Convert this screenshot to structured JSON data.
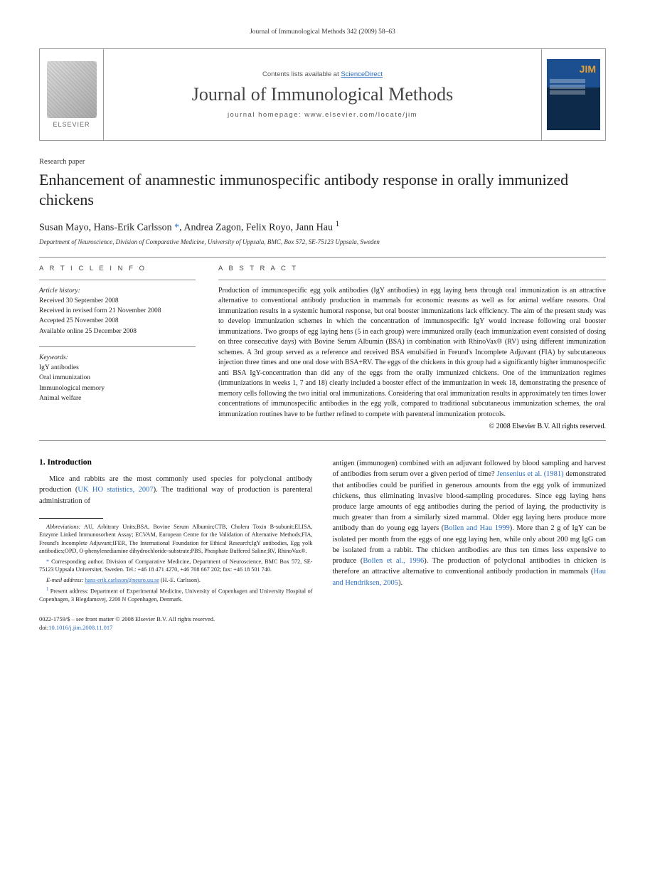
{
  "header": {
    "running": "Journal of Immunological Methods 342 (2009) 58–63"
  },
  "masthead": {
    "publisher": "ELSEVIER",
    "contents_prefix": "Contents lists available at ",
    "contents_link": "ScienceDirect",
    "journal": "Journal of Immunological Methods",
    "homepage_prefix": "journal homepage: ",
    "homepage": "www.elsevier.com/locate/jim"
  },
  "article": {
    "type": "Research paper",
    "title": "Enhancement of anamnestic immunospecific antibody response in orally immunized chickens",
    "authors_html": "Susan Mayo, Hans-Erik Carlsson <span class=\"corr-mark\">*</span>, Andrea Zagon, Felix Royo, Jann Hau <sup>1</sup>",
    "affiliation": "Department of Neuroscience, Division of Comparative Medicine, University of Uppsala, BMC, Box 572, SE-75123 Uppsala, Sweden"
  },
  "info": {
    "label": "A R T I C L E   I N F O",
    "history_head": "Article history:",
    "history": [
      "Received 30 September 2008",
      "Received in revised form 21 November 2008",
      "Accepted 25 November 2008",
      "Available online 25 December 2008"
    ],
    "keywords_head": "Keywords:",
    "keywords": [
      "IgY antibodies",
      "Oral immunization",
      "Immunological memory",
      "Animal welfare"
    ]
  },
  "abstract": {
    "label": "A B S T R A C T",
    "text": "Production of immunospecific egg yolk antibodies (IgY antibodies) in egg laying hens through oral immunization is an attractive alternative to conventional antibody production in mammals for economic reasons as well as for animal welfare reasons. Oral immunization results in a systemic humoral response, but oral booster immunizations lack efficiency. The aim of the present study was to develop immunization schemes in which the concentration of immunospecific IgY would increase following oral booster immunizations. Two groups of egg laying hens (5 in each group) were immunized orally (each immunization event consisted of dosing on three consecutive days) with Bovine Serum Albumin (BSA) in combination with RhinoVax® (RV) using different immunization schemes. A 3rd group served as a reference and received BSA emulsified in Freund's Incomplete Adjuvant (FIA) by subcutaneous injection three times and one oral dose with BSA+RV. The eggs of the chickens in this group had a significantly higher immunospecific anti BSA IgY-concentration than did any of the eggs from the orally immunized chickens. One of the immunization regimes (immunizations in weeks 1, 7 and 18) clearly included a booster effect of the immunization in week 18, demonstrating the presence of memory cells following the two initial oral immunizations. Considering that oral immunization results in approximately ten times lower concentrations of immunospecific antibodies in the egg yolk, compared to traditional subcutaneous immunization schemes, the oral immunization routines have to be further refined to compete with parenteral immunization protocols.",
    "copyright": "© 2008 Elsevier B.V. All rights reserved."
  },
  "body": {
    "intro_heading": "1. Introduction",
    "col1_p1_html": "Mice and rabbits are the most commonly used species for polyclonal antibody production (<a class=\"ref\" href=\"#\">UK HO statistics, 2007</a>). The traditional way of production is parenteral administration of",
    "col2_p1_html": "antigen (immunogen) combined with an adjuvant followed by blood sampling and harvest of antibodies from serum over a given period of time? <a class=\"ref\" href=\"#\">Jensenius et al. (1981)</a> demonstrated that antibodies could be purified in generous amounts from the egg yolk of immunized chickens, thus eliminating invasive blood-sampling procedures. Since egg laying hens produce large amounts of egg antibodies during the period of laying, the productivity is much greater than from a similarly sized mammal. Older egg laying hens produce more antibody than do young egg layers (<a class=\"ref\" href=\"#\">Bollen and Hau 1999</a>). More than 2 g of IgY can be isolated per month from the eggs of one egg laying hen, while only about 200 mg IgG can be isolated from a rabbit. The chicken antibodies are thus ten times less expensive to produce (<a class=\"ref\" href=\"#\">Bollen et al., 1996</a>). The production of polyclonal antibodies in chicken is therefore an attractive alternative to conventional antibody production in mammals (<a class=\"ref\" href=\"#\">Hau and Hendriksen, 2005</a>)."
  },
  "footnotes": {
    "abbrev_label": "Abbreviations:",
    "abbrev_text": " AU, Arbitrary Units;BSA, Bovine Serum Albumin;CTB, Cholera Toxin B-subunit;ELISA, Enzyme Linked Immunosorbent Assay; ECVAM, European Centre for the Validation of Alternative Methods;FIA, Freund's Incomplete Adjuvant;IFER, The International Foundation for Ethical Research;IgY antibodies, Egg yolk antibodies;OPD, O-phenylenediamine dihydrochloride-substrate;PBS, Phosphate Buffered Saline;RV, RhinoVax®.",
    "corr_label": "* ",
    "corr_text": "Corresponding author. Division of Comparative Medicine, Department of Neuroscience, BMC Box 572, SE-75123 Uppsala Universitet, Sweden. Tel.: +46 18 471 4270, +46 708 667 202; fax: +46 18 501 740.",
    "email_label": "E-mail address:",
    "email": "hans-erik.carlsson@neuro.uu.se",
    "email_owner": " (H.-E. Carlsson).",
    "fn1_label": "1 ",
    "fn1_text": "Present address: Department of Experimental Medicine, University of Copenhagen and University Hospital of Copenhagen, 3 Blegdamsvej, 2200 N Copenhagen, Denmark."
  },
  "doi": {
    "line1": "0022-1759/$ – see front matter © 2008 Elsevier B.V. All rights reserved.",
    "line2_prefix": "doi:",
    "line2_link": "10.1016/j.jim.2008.11.017"
  }
}
